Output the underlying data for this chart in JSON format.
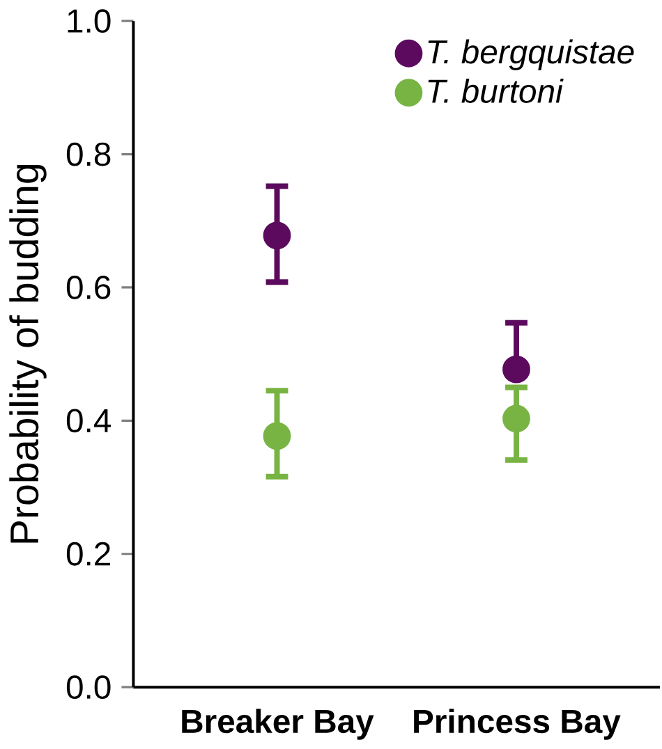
{
  "chart_data": {
    "type": "scatter",
    "ylabel": "Probability of budding",
    "categories": [
      "Breaker Bay",
      "Princess Bay"
    ],
    "series": [
      {
        "name": "T.  bergquistae",
        "color": "#5c0a5e",
        "values": [
          0.678,
          0.477
        ],
        "errors": [
          [
            0.608,
            0.752
          ],
          [
            0.477,
            0.547
          ]
        ]
      },
      {
        "name": "T. burtoni",
        "color": "#78b443",
        "values": [
          0.377,
          0.403
        ],
        "errors": [
          [
            0.316,
            0.445
          ],
          [
            0.341,
            0.45
          ]
        ]
      }
    ],
    "ylim": [
      0,
      1
    ],
    "yticks": [
      {
        "value": 0,
        "label": "0.0"
      },
      {
        "value": 0.2,
        "label": "0.2"
      },
      {
        "value": 0.4,
        "label": "0.4"
      },
      {
        "value": 0.6,
        "label": "0.6"
      },
      {
        "value": 0.8,
        "label": "0.8"
      },
      {
        "value": 1,
        "label": "1.0"
      }
    ],
    "legend": "top right",
    "grid": false
  }
}
